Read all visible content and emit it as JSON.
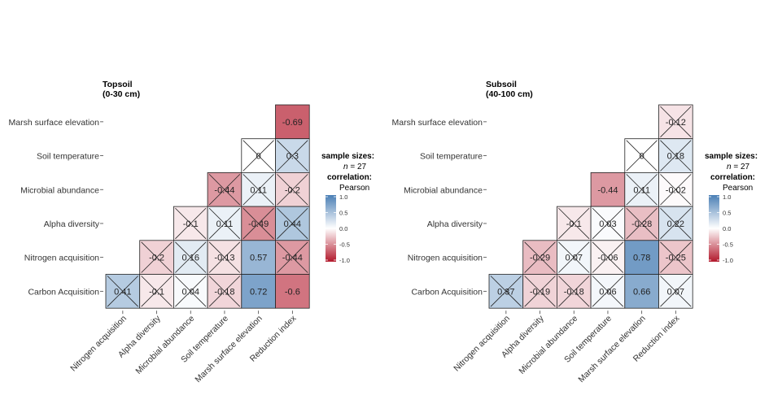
{
  "chart_data": [
    {
      "type": "heatmap",
      "title": "Topsoil",
      "subtitle": "(0-30 cm)",
      "rows": [
        "Marsh surface elevation",
        "Soil temperature",
        "Microbial abundance",
        "Alpha diversity",
        "Nitrogen acquisition",
        "Carbon Acquisition"
      ],
      "columns": [
        "Nitrogen acquisition",
        "Alpha diversity",
        "Microbial abundance",
        "Soil temperature",
        "Marsh surface elevation",
        "Reduction index"
      ],
      "cells": [
        {
          "row": "Marsh surface elevation",
          "column": "Reduction index",
          "label": "-0.69",
          "value": -0.69,
          "crossed": false
        },
        {
          "row": "Soil temperature",
          "column": "Marsh surface elevation",
          "label": "0",
          "value": 0,
          "crossed": true
        },
        {
          "row": "Soil temperature",
          "column": "Reduction index",
          "label": "0.3",
          "value": 0.3,
          "crossed": true
        },
        {
          "row": "Microbial abundance",
          "column": "Soil temperature",
          "label": "-0.44",
          "value": -0.44,
          "crossed": true
        },
        {
          "row": "Microbial abundance",
          "column": "Marsh surface elevation",
          "label": "0.11",
          "value": 0.11,
          "crossed": true
        },
        {
          "row": "Microbial abundance",
          "column": "Reduction index",
          "label": "-0.2",
          "value": -0.2,
          "crossed": true
        },
        {
          "row": "Alpha diversity",
          "column": "Microbial abundance",
          "label": "-0.1",
          "value": -0.1,
          "crossed": true
        },
        {
          "row": "Alpha diversity",
          "column": "Soil temperature",
          "label": "0.11",
          "value": 0.11,
          "crossed": true
        },
        {
          "row": "Alpha diversity",
          "column": "Marsh surface elevation",
          "label": "-0.49",
          "value": -0.49,
          "crossed": true
        },
        {
          "row": "Alpha diversity",
          "column": "Reduction index",
          "label": "0.44",
          "value": 0.44,
          "crossed": true
        },
        {
          "row": "Nitrogen acquisition",
          "column": "Alpha diversity",
          "label": "-0.2",
          "value": -0.2,
          "crossed": true
        },
        {
          "row": "Nitrogen acquisition",
          "column": "Microbial abundance",
          "label": "0.16",
          "value": 0.16,
          "crossed": true
        },
        {
          "row": "Nitrogen acquisition",
          "column": "Soil temperature",
          "label": "-0.13",
          "value": -0.13,
          "crossed": true
        },
        {
          "row": "Nitrogen acquisition",
          "column": "Marsh surface elevation",
          "label": "0.57",
          "value": 0.57,
          "crossed": false
        },
        {
          "row": "Nitrogen acquisition",
          "column": "Reduction index",
          "label": "-0.44",
          "value": -0.44,
          "crossed": true
        },
        {
          "row": "Carbon Acquisition",
          "column": "Nitrogen acquisition",
          "label": "0.41",
          "value": 0.41,
          "crossed": true
        },
        {
          "row": "Carbon Acquisition",
          "column": "Alpha diversity",
          "label": "-0.1",
          "value": -0.1,
          "crossed": true
        },
        {
          "row": "Carbon Acquisition",
          "column": "Microbial abundance",
          "label": "0.04",
          "value": 0.04,
          "crossed": true
        },
        {
          "row": "Carbon Acquisition",
          "column": "Soil temperature",
          "label": "-0.18",
          "value": -0.18,
          "crossed": true
        },
        {
          "row": "Carbon Acquisition",
          "column": "Marsh surface elevation",
          "label": "0.72",
          "value": 0.72,
          "crossed": false
        },
        {
          "row": "Carbon Acquisition",
          "column": "Reduction index",
          "label": "-0.6",
          "value": -0.6,
          "crossed": false
        }
      ],
      "legend": {
        "heading": "sample sizes:",
        "n_label": "n",
        "n_value": "= 27",
        "correlation_heading": "correlation:",
        "method": "Pearson",
        "ticks": [
          "1.0",
          "0.5",
          "0.0",
          "-0.5",
          "-1.0"
        ],
        "colors": {
          "positive": "#4a7fb5",
          "zero": "#ffffff",
          "negative": "#b2182b"
        }
      }
    },
    {
      "type": "heatmap",
      "title": "Subsoil",
      "subtitle": "(40-100 cm)",
      "rows": [
        "Marsh surface elevation",
        "Soil temperature",
        "Microbial abundance",
        "Alpha diversity",
        "Nitrogen acquisition",
        "Carbon Acquisition"
      ],
      "columns": [
        "Nitrogen acquisition",
        "Alpha diversity",
        "Microbial abundance",
        "Soil temperature",
        "Marsh surface elevation",
        "Reduction index"
      ],
      "cells": [
        {
          "row": "Marsh surface elevation",
          "column": "Reduction index",
          "label": "-0.12",
          "value": -0.12,
          "crossed": true
        },
        {
          "row": "Soil temperature",
          "column": "Marsh surface elevation",
          "label": "0",
          "value": 0,
          "crossed": true
        },
        {
          "row": "Soil temperature",
          "column": "Reduction index",
          "label": "0.18",
          "value": 0.18,
          "crossed": true
        },
        {
          "row": "Microbial abundance",
          "column": "Soil temperature",
          "label": "-0.44",
          "value": -0.44,
          "crossed": false
        },
        {
          "row": "Microbial abundance",
          "column": "Marsh surface elevation",
          "label": "0.11",
          "value": 0.11,
          "crossed": true
        },
        {
          "row": "Microbial abundance",
          "column": "Reduction index",
          "label": "-0.02",
          "value": -0.02,
          "crossed": true
        },
        {
          "row": "Alpha diversity",
          "column": "Microbial abundance",
          "label": "-0.1",
          "value": -0.1,
          "crossed": true
        },
        {
          "row": "Alpha diversity",
          "column": "Soil temperature",
          "label": "0.03",
          "value": 0.03,
          "crossed": true
        },
        {
          "row": "Alpha diversity",
          "column": "Marsh surface elevation",
          "label": "-0.28",
          "value": -0.28,
          "crossed": true
        },
        {
          "row": "Alpha diversity",
          "column": "Reduction index",
          "label": "0.22",
          "value": 0.22,
          "crossed": true
        },
        {
          "row": "Nitrogen acquisition",
          "column": "Alpha diversity",
          "label": "-0.29",
          "value": -0.29,
          "crossed": true
        },
        {
          "row": "Nitrogen acquisition",
          "column": "Microbial abundance",
          "label": "0.07",
          "value": 0.07,
          "crossed": true
        },
        {
          "row": "Nitrogen acquisition",
          "column": "Soil temperature",
          "label": "-0.06",
          "value": -0.06,
          "crossed": true
        },
        {
          "row": "Nitrogen acquisition",
          "column": "Marsh surface elevation",
          "label": "0.78",
          "value": 0.78,
          "crossed": false
        },
        {
          "row": "Nitrogen acquisition",
          "column": "Reduction index",
          "label": "-0.25",
          "value": -0.25,
          "crossed": true
        },
        {
          "row": "Carbon Acquisition",
          "column": "Nitrogen acquisition",
          "label": "0.37",
          "value": 0.37,
          "crossed": true
        },
        {
          "row": "Carbon Acquisition",
          "column": "Alpha diversity",
          "label": "-0.19",
          "value": -0.19,
          "crossed": true
        },
        {
          "row": "Carbon Acquisition",
          "column": "Microbial abundance",
          "label": "-0.18",
          "value": -0.18,
          "crossed": true
        },
        {
          "row": "Carbon Acquisition",
          "column": "Soil temperature",
          "label": "0.06",
          "value": 0.06,
          "crossed": true
        },
        {
          "row": "Carbon Acquisition",
          "column": "Marsh surface elevation",
          "label": "0.66",
          "value": 0.66,
          "crossed": false
        },
        {
          "row": "Carbon Acquisition",
          "column": "Reduction index",
          "label": "0.07",
          "value": 0.07,
          "crossed": true
        }
      ],
      "legend": {
        "heading": "sample sizes:",
        "n_label": "n",
        "n_value": "= 27",
        "correlation_heading": "correlation:",
        "method": "Pearson",
        "ticks": [
          "1.0",
          "0.5",
          "0.0",
          "-0.5",
          "-1.0"
        ],
        "colors": {
          "positive": "#4a7fb5",
          "zero": "#ffffff",
          "negative": "#b2182b"
        }
      }
    }
  ]
}
